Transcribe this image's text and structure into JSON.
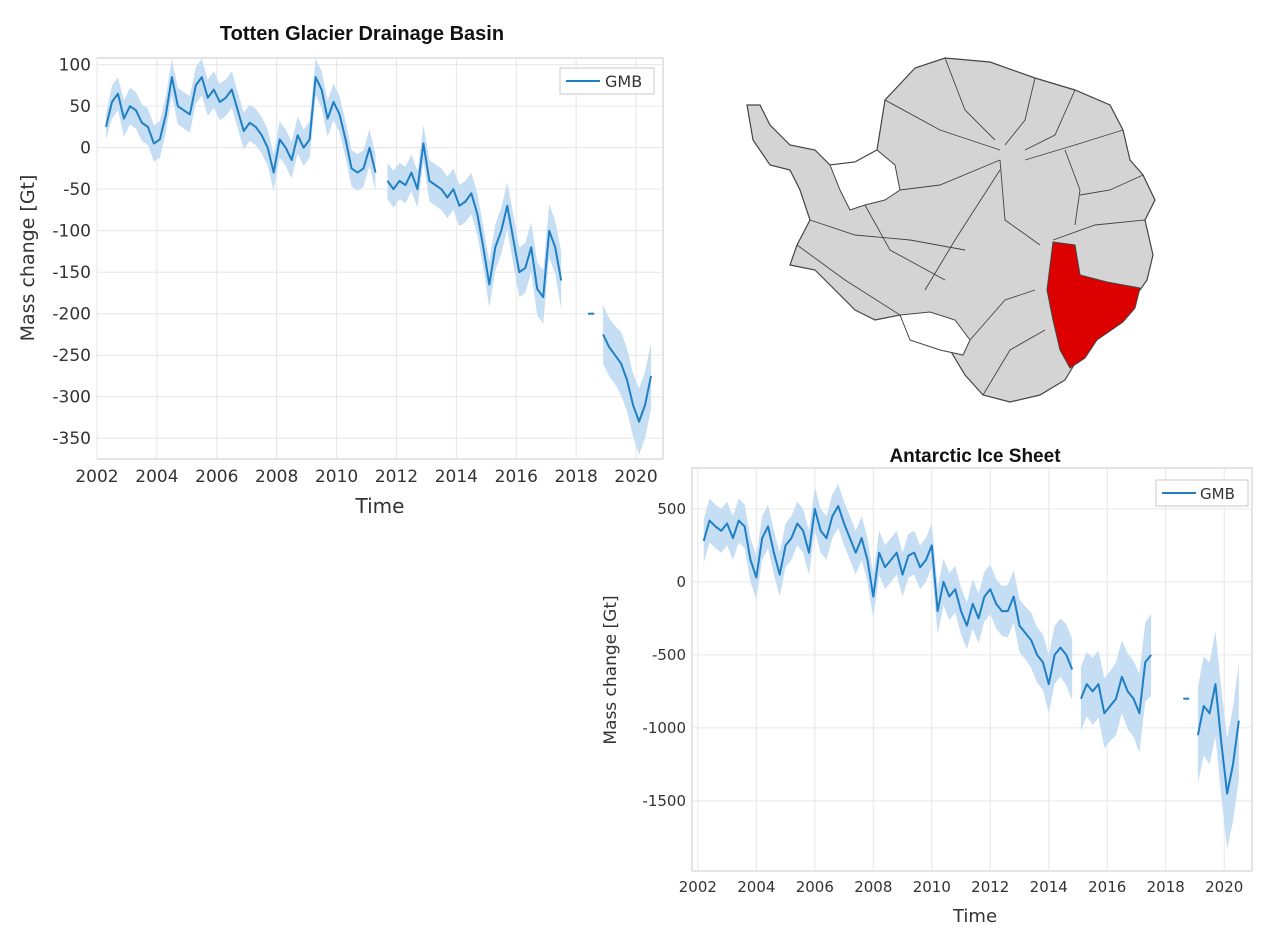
{
  "chart_data": [
    {
      "type": "line",
      "title": "Totten Glacier Drainage Basin",
      "xlabel": "Time",
      "ylabel": "Mass change [Gt]",
      "xlim": [
        2002.0,
        2020.9
      ],
      "ylim": [
        -375,
        108
      ],
      "xticks": [
        2002,
        2004,
        2006,
        2008,
        2010,
        2012,
        2014,
        2016,
        2018,
        2020
      ],
      "yticks": [
        100,
        50,
        0,
        -50,
        -100,
        -150,
        -200,
        -250,
        -300,
        -350
      ],
      "grid": true,
      "legend": {
        "position": "top-right",
        "entries": [
          "GMB"
        ]
      },
      "series": [
        {
          "name": "GMB",
          "color": "#1f7fc4",
          "band_color": "#c6def3",
          "x": [
            2002.3,
            2002.5,
            2002.7,
            2002.9,
            2003.1,
            2003.3,
            2003.5,
            2003.7,
            2003.9,
            2004.1,
            2004.3,
            2004.5,
            2004.7,
            2004.9,
            2005.1,
            2005.3,
            2005.5,
            2005.7,
            2005.9,
            2006.1,
            2006.3,
            2006.5,
            2006.7,
            2006.9,
            2007.1,
            2007.3,
            2007.5,
            2007.7,
            2007.9,
            2008.1,
            2008.3,
            2008.5,
            2008.7,
            2008.9,
            2009.1,
            2009.3,
            2009.5,
            2009.7,
            2009.9,
            2010.1,
            2010.3,
            2010.5,
            2010.7,
            2010.9,
            2011.1,
            2011.3,
            null,
            2011.7,
            2011.9,
            2012.1,
            2012.3,
            2012.5,
            2012.7,
            2012.9,
            2013.1,
            2013.3,
            2013.5,
            2013.7,
            2013.9,
            2014.1,
            2014.3,
            2014.5,
            2014.7,
            2014.9,
            2015.1,
            2015.3,
            2015.5,
            2015.7,
            2015.9,
            2016.1,
            2016.3,
            2016.5,
            2016.7,
            2016.9,
            2017.1,
            2017.3,
            2017.5,
            null,
            2018.5,
            null,
            2018.9,
            2019.1,
            2019.3,
            2019.5,
            2019.7,
            2019.9,
            2020.1,
            2020.3,
            2020.5
          ],
          "y": [
            25,
            55,
            65,
            35,
            50,
            45,
            30,
            25,
            5,
            10,
            40,
            85,
            50,
            45,
            40,
            75,
            85,
            60,
            70,
            55,
            60,
            70,
            45,
            20,
            30,
            25,
            15,
            0,
            -30,
            10,
            0,
            -15,
            15,
            0,
            10,
            85,
            70,
            35,
            55,
            40,
            10,
            -25,
            -30,
            -25,
            0,
            -30,
            null,
            -40,
            -50,
            -40,
            -45,
            -30,
            -50,
            5,
            -40,
            -45,
            -50,
            -60,
            -50,
            -70,
            -65,
            -55,
            -80,
            -120,
            -165,
            -120,
            -100,
            -70,
            -110,
            -150,
            -145,
            -120,
            -170,
            -180,
            -100,
            -120,
            -160,
            null,
            -200,
            null,
            -225,
            -240,
            -250,
            -260,
            -280,
            -310,
            -330,
            -310,
            -275
          ],
          "band": [
            15,
            20,
            20,
            22,
            22,
            22,
            22,
            22,
            22,
            22,
            22,
            22,
            22,
            22,
            22,
            22,
            22,
            22,
            22,
            22,
            22,
            22,
            22,
            22,
            22,
            22,
            22,
            22,
            22,
            22,
            22,
            22,
            22,
            22,
            22,
            22,
            22,
            22,
            22,
            22,
            22,
            22,
            22,
            22,
            22,
            22,
            null,
            22,
            22,
            22,
            22,
            22,
            22,
            22,
            25,
            25,
            25,
            25,
            25,
            25,
            25,
            25,
            25,
            25,
            28,
            28,
            28,
            28,
            30,
            30,
            30,
            30,
            32,
            32,
            32,
            32,
            35,
            null,
            35,
            null,
            35,
            35,
            35,
            38,
            38,
            38,
            40,
            40,
            40
          ]
        }
      ]
    },
    {
      "type": "line",
      "title": "Antarctic Ice Sheet",
      "xlabel": "Time",
      "ylabel": "Mass change [Gt]",
      "xlim": [
        2001.8,
        2020.95
      ],
      "ylim": [
        -1980,
        780
      ],
      "xticks": [
        2002,
        2004,
        2006,
        2008,
        2010,
        2012,
        2014,
        2016,
        2018,
        2020
      ],
      "yticks": [
        500,
        0,
        -500,
        -1000,
        -1500
      ],
      "grid": true,
      "legend": {
        "position": "top-right",
        "entries": [
          "GMB"
        ]
      },
      "series": [
        {
          "name": "GMB",
          "color": "#1f7fc4",
          "band_color": "#c6def3",
          "x": [
            2002.2,
            2002.4,
            2002.6,
            2002.8,
            2003.0,
            2003.2,
            2003.4,
            2003.6,
            2003.8,
            2004.0,
            2004.2,
            2004.4,
            2004.6,
            2004.8,
            2005.0,
            2005.2,
            2005.4,
            2005.6,
            2005.8,
            2006.0,
            2006.2,
            2006.4,
            2006.6,
            2006.8,
            2007.0,
            2007.2,
            2007.4,
            2007.6,
            2007.8,
            2008.0,
            2008.2,
            2008.4,
            2008.6,
            2008.8,
            2009.0,
            2009.2,
            2009.4,
            2009.6,
            2009.8,
            2010.0,
            2010.2,
            2010.4,
            2010.6,
            2010.8,
            2011.0,
            2011.2,
            2011.4,
            2011.6,
            2011.8,
            2012.0,
            2012.2,
            2012.4,
            2012.6,
            2012.8,
            2013.0,
            2013.2,
            2013.4,
            2013.6,
            2013.8,
            2014.0,
            2014.2,
            2014.4,
            2014.6,
            2014.8,
            null,
            2015.1,
            2015.3,
            2015.5,
            2015.7,
            2015.9,
            2016.1,
            2016.3,
            2016.5,
            2016.7,
            2016.9,
            2017.1,
            2017.3,
            2017.5,
            null,
            2018.7,
            null,
            2019.1,
            2019.3,
            2019.5,
            2019.7,
            2019.9,
            2020.1,
            2020.3,
            2020.5
          ],
          "y": [
            280,
            420,
            380,
            350,
            400,
            300,
            420,
            380,
            150,
            30,
            300,
            380,
            200,
            50,
            250,
            300,
            400,
            350,
            200,
            500,
            350,
            300,
            450,
            520,
            400,
            300,
            200,
            300,
            150,
            -100,
            200,
            100,
            150,
            200,
            50,
            180,
            200,
            100,
            150,
            250,
            -200,
            0,
            -100,
            -50,
            -200,
            -300,
            -150,
            -250,
            -100,
            -50,
            -150,
            -200,
            -200,
            -100,
            -300,
            -350,
            -400,
            -500,
            -550,
            -700,
            -500,
            -450,
            -500,
            -600,
            null,
            -800,
            -700,
            -750,
            -700,
            -900,
            -850,
            -800,
            -650,
            -750,
            -800,
            -900,
            -550,
            -500,
            null,
            -800,
            null,
            -1050,
            -850,
            -900,
            -700,
            -1100,
            -1450,
            -1250,
            -950
          ],
          "band": [
            150,
            150,
            150,
            150,
            150,
            150,
            150,
            150,
            150,
            150,
            150,
            150,
            150,
            150,
            150,
            150,
            150,
            150,
            150,
            150,
            150,
            150,
            150,
            150,
            150,
            150,
            150,
            150,
            150,
            150,
            150,
            150,
            150,
            150,
            150,
            150,
            150,
            150,
            150,
            150,
            160,
            160,
            160,
            160,
            160,
            160,
            170,
            170,
            170,
            170,
            170,
            170,
            180,
            180,
            180,
            180,
            190,
            190,
            190,
            200,
            200,
            200,
            210,
            210,
            null,
            220,
            220,
            230,
            230,
            240,
            240,
            250,
            250,
            260,
            260,
            270,
            270,
            280,
            null,
            320,
            null,
            330,
            340,
            350,
            360,
            370,
            380,
            390,
            400
          ]
        }
      ]
    }
  ],
  "map": {
    "highlight_color": "#dd0000",
    "land_color": "#d4d4d4",
    "border_color": "#444444"
  }
}
